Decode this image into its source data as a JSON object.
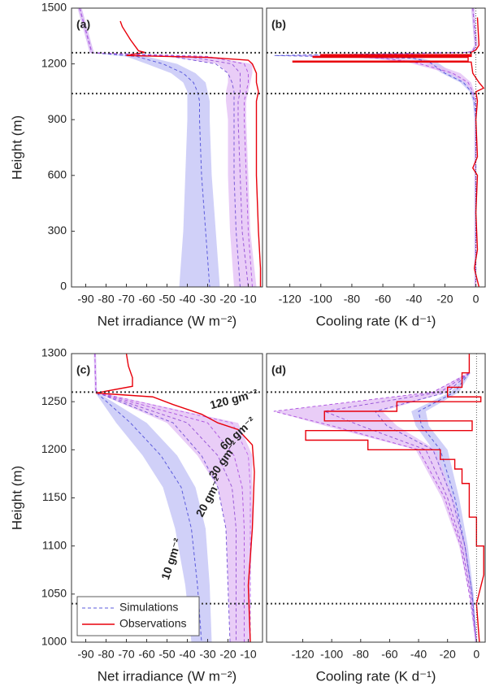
{
  "chart_data": [
    {
      "type": "profile",
      "panel_label": "(a)",
      "x_label": "Net irradiance (W m⁻²)",
      "y_label": "Height (m)",
      "xlim": [
        -97,
        -3
      ],
      "xticks": [
        -90,
        -80,
        -70,
        -60,
        -50,
        -40,
        -30,
        -20,
        -10
      ],
      "ylim": [
        0,
        1500
      ],
      "yticks": [
        0,
        300,
        600,
        900,
        1200,
        1500
      ],
      "hlines": [
        1260,
        1040
      ],
      "bands": [
        {
          "color": "#c4c4f6",
          "heights": [
            1500,
            1260,
            1240,
            1200,
            1150,
            1100,
            1050,
            1000,
            900,
            600,
            300,
            0
          ],
          "low": [
            -94,
            -88,
            -70,
            -60,
            -48,
            -42,
            -40,
            -40,
            -40,
            -41,
            -42,
            -44
          ],
          "high": [
            -92,
            -86,
            -60,
            -45,
            -36,
            -31,
            -30,
            -29,
            -29,
            -28,
            -26,
            -24
          ]
        },
        {
          "color": "#e3c0f5",
          "heights": [
            1500,
            1260,
            1240,
            1200,
            1150,
            1100,
            1050,
            1000,
            900,
            600,
            300,
            0
          ],
          "low": [
            -94,
            -88,
            -50,
            -25,
            -20,
            -20,
            -21,
            -21,
            -20,
            -20,
            -19,
            -17
          ],
          "high": [
            -92,
            -86,
            -30,
            -8,
            -8,
            -9,
            -10,
            -11,
            -11,
            -10,
            -9,
            -6
          ]
        }
      ],
      "series": [
        {
          "color": "#5b5bdc",
          "dash": true,
          "heights": [
            1500,
            1260,
            1240,
            1200,
            1150,
            1100,
            1050,
            1000,
            900,
            600,
            300,
            0
          ],
          "values": [
            -93,
            -87,
            -65,
            -52,
            -42,
            -37,
            -35,
            -34,
            -34,
            -33,
            -31,
            -29
          ]
        },
        {
          "color": "#7a5ad8",
          "dash": true,
          "heights": [
            1500,
            1260,
            1240,
            1200,
            1150,
            1100,
            1050,
            1000,
            900,
            600,
            300,
            0
          ],
          "values": [
            -93,
            -87,
            -48,
            -26,
            -20,
            -18,
            -17,
            -17,
            -17,
            -17,
            -16,
            -14
          ]
        },
        {
          "color": "#9a5ad8",
          "dash": true,
          "heights": [
            1500,
            1260,
            1240,
            1200,
            1150,
            1100,
            1050,
            1000,
            900,
            600,
            300,
            0
          ],
          "values": [
            -93,
            -87,
            -40,
            -18,
            -14,
            -14,
            -14,
            -15,
            -15,
            -14,
            -13,
            -10
          ]
        },
        {
          "color": "#b05ae0",
          "dash": true,
          "heights": [
            1500,
            1260,
            1240,
            1200,
            1150,
            1100,
            1050,
            1000,
            900,
            600,
            300,
            0
          ],
          "values": [
            -93,
            -87,
            -30,
            -12,
            -10,
            -10,
            -11,
            -12,
            -12,
            -11,
            -10,
            -8
          ]
        },
        {
          "color": "#e8000b",
          "dash": false,
          "heights": [
            1430,
            1400,
            1330,
            1270,
            1262,
            1245,
            1235,
            1220,
            1200,
            1150,
            1100,
            1050,
            1000,
            900,
            600,
            300,
            100,
            0
          ],
          "values": [
            -73,
            -72,
            -68,
            -64,
            -61,
            -70,
            -30,
            -10,
            -8,
            -6,
            -6,
            -5,
            -6,
            -6,
            -6,
            -5,
            -4,
            -4
          ]
        }
      ]
    },
    {
      "type": "profile",
      "panel_label": "(b)",
      "x_label": "Cooling rate (K d⁻¹)",
      "xlim": [
        -135,
        6
      ],
      "xticks": [
        -120,
        -100,
        -80,
        -60,
        -40,
        -20,
        0
      ],
      "ylim": [
        0,
        1500
      ],
      "hlines": [
        1260,
        1040
      ],
      "vlines": [
        0
      ],
      "bands": [
        {
          "color": "#c4c4f6",
          "heights": [
            1500,
            1300,
            1270,
            1262,
            1245,
            1230,
            1210,
            1150,
            1100,
            1050,
            1000,
            900,
            0
          ],
          "low": [
            -3,
            -1,
            -3,
            -8,
            -132,
            -45,
            -33,
            -22,
            -10,
            -4,
            -2,
            -1,
            -1
          ],
          "high": [
            -1,
            1,
            -1,
            -3,
            -100,
            -35,
            -25,
            -15,
            -6,
            -2,
            0,
            0,
            0
          ]
        },
        {
          "color": "#e3c0f5",
          "heights": [
            1500,
            1300,
            1270,
            1262,
            1245,
            1230,
            1210,
            1150,
            1100,
            1050,
            1000,
            900,
            0
          ],
          "low": [
            -3,
            -1,
            -3,
            -8,
            -132,
            -70,
            -45,
            -18,
            -7,
            -3,
            -1,
            -1,
            -1
          ],
          "high": [
            -1,
            1,
            -1,
            -3,
            -90,
            -50,
            -30,
            -10,
            -3,
            -1,
            0,
            0,
            0
          ]
        }
      ],
      "series": [
        {
          "color": "#5b5bdc",
          "dash": true,
          "heights": [
            1500,
            1300,
            1270,
            1262,
            1245,
            1230,
            1210,
            1150,
            1100,
            1050,
            1000,
            900,
            0
          ],
          "values": [
            -2,
            0,
            -2,
            -5,
            -130,
            -40,
            -30,
            -20,
            -8,
            -3,
            -1,
            0,
            0
          ]
        },
        {
          "color": "#b05ae0",
          "dash": true,
          "heights": [
            1500,
            1300,
            1270,
            1262,
            1245,
            1230,
            1210,
            1150,
            1100,
            1050,
            1000,
            900,
            0
          ],
          "values": [
            -2,
            0,
            -2,
            -5,
            -100,
            -60,
            -40,
            -15,
            -5,
            -2,
            0,
            0,
            0
          ]
        },
        {
          "color": "#e8000b",
          "dash": false,
          "heights": [
            1450,
            1300,
            1275,
            1262,
            1250,
            1250,
            1245,
            1245,
            1240,
            1240,
            1235,
            1235,
            1215,
            1215,
            1210,
            1210,
            1150,
            1100,
            1070,
            1050,
            1000,
            900,
            700,
            640,
            600,
            400,
            200,
            100,
            0
          ],
          "values": [
            1,
            2,
            0,
            -3,
            -3,
            -100,
            -100,
            -3,
            -3,
            -105,
            -105,
            -5,
            -5,
            -118,
            -118,
            -3,
            -2,
            2,
            5,
            0,
            1,
            0,
            1,
            -2,
            1,
            0,
            1,
            -1,
            2
          ]
        }
      ]
    },
    {
      "type": "profile",
      "panel_label": "(c)",
      "x_label": "Net irradiance (W m⁻²)",
      "y_label": "Height (m)",
      "xlim": [
        -97,
        -3
      ],
      "xticks": [
        -90,
        -80,
        -70,
        -60,
        -50,
        -40,
        -30,
        -20,
        -10
      ],
      "ylim": [
        1000,
        1300
      ],
      "yticks": [
        1000,
        1050,
        1100,
        1150,
        1200,
        1250,
        1300
      ],
      "hlines": [
        1260,
        1040
      ],
      "legend": "lower left",
      "annotations": [
        {
          "text": "10 gm⁻²",
          "color": "#5b5bdc"
        },
        {
          "text": "20 gm⁻²",
          "color": "#7a5ad8"
        },
        {
          "text": "30 gm⁻²",
          "color": "#9a5ad8"
        },
        {
          "text": "60 gm⁻²",
          "color": "#b05ae0"
        },
        {
          "text": "120 gm⁻²",
          "color": "#c070e8"
        }
      ],
      "bands": [
        {
          "color": "#c4c4f6",
          "heights": [
            1300,
            1260,
            1228,
            1194,
            1161,
            1118,
            1059,
            1000
          ],
          "low": [
            -86,
            -85.5,
            -75,
            -62,
            -52,
            -46,
            -41,
            -38
          ],
          "high": [
            -85,
            -84.5,
            -60,
            -45,
            -36,
            -31,
            -29,
            -28
          ]
        },
        {
          "color": "#e3c0f5",
          "heights": [
            1300,
            1260,
            1228,
            1194,
            1161,
            1118,
            1059,
            1000
          ],
          "low": [
            -86,
            -85.5,
            -50,
            -35,
            -25,
            -21,
            -20,
            -19
          ],
          "high": [
            -85,
            -84.5,
            -15,
            -8,
            -8,
            -8,
            -9,
            -9
          ]
        }
      ],
      "series": [
        {
          "name": "Simulations",
          "color": "#5b5bdc",
          "dash": true,
          "heights": [
            1300,
            1260,
            1228,
            1194,
            1161,
            1118,
            1059,
            1000
          ],
          "values": [
            -85.5,
            -85,
            -68,
            -53,
            -43,
            -38,
            -35,
            -33
          ]
        },
        {
          "color": "#7a5ad8",
          "dash": true,
          "heights": [
            1300,
            1260,
            1228,
            1194,
            1161,
            1118,
            1059,
            1000
          ],
          "values": [
            -85.5,
            -85,
            -47,
            -33,
            -25,
            -21,
            -20,
            -19
          ]
        },
        {
          "color": "#9a5ad8",
          "dash": true,
          "heights": [
            1300,
            1260,
            1228,
            1194,
            1161,
            1118,
            1059,
            1000
          ],
          "values": [
            -85.5,
            -85,
            -40,
            -25,
            -18,
            -16,
            -16,
            -16
          ]
        },
        {
          "color": "#b05ae0",
          "dash": true,
          "heights": [
            1300,
            1260,
            1228,
            1194,
            1161,
            1118,
            1059,
            1000
          ],
          "values": [
            -85.5,
            -85,
            -30,
            -17,
            -13,
            -12,
            -12,
            -12
          ]
        },
        {
          "color": "#c070e8",
          "dash": true,
          "heights": [
            1300,
            1260,
            1228,
            1194,
            1161,
            1118,
            1059,
            1000
          ],
          "values": [
            -85.5,
            -85,
            -18,
            -10,
            -9,
            -9,
            -9,
            -9
          ]
        },
        {
          "name": "Observations",
          "color": "#e8000b",
          "dash": false,
          "heights": [
            1300,
            1287,
            1275,
            1266,
            1259,
            1255,
            1247,
            1237,
            1228,
            1221,
            1205,
            1177,
            1118,
            1059,
            1000
          ],
          "values": [
            -70,
            -69,
            -67,
            -67,
            -85,
            -57,
            -47,
            -33,
            -25,
            -15,
            -8,
            -7,
            -8,
            -10,
            -9
          ]
        }
      ]
    },
    {
      "type": "profile",
      "panel_label": "(d)",
      "x_label": "Cooling rate (K d⁻¹)",
      "xlim": [
        -145,
        6
      ],
      "xticks": [
        -120,
        -100,
        -80,
        -60,
        -40,
        -20,
        0
      ],
      "ylim": [
        1000,
        1300
      ],
      "hlines": [
        1260,
        1040
      ],
      "vlines": [
        0
      ],
      "bands": [
        {
          "color": "#c4c4f6",
          "heights": [
            1280,
            1260,
            1240,
            1225,
            1200,
            1150,
            1100,
            1050,
            1000
          ],
          "low": [
            -6,
            -18,
            -45,
            -42,
            -30,
            -18,
            -10,
            -4,
            -1
          ],
          "high": [
            -4,
            -12,
            -35,
            -33,
            -20,
            -12,
            -6,
            -2,
            0
          ]
        },
        {
          "color": "#e3c0f5",
          "heights": [
            1280,
            1260,
            1240,
            1225,
            1200,
            1150,
            1100,
            1050,
            1000
          ],
          "low": [
            -6,
            -30,
            -140,
            -105,
            -42,
            -24,
            -12,
            -5,
            -1
          ],
          "high": [
            -4,
            -20,
            -65,
            -55,
            -28,
            -16,
            -7,
            -3,
            0
          ]
        }
      ],
      "series": [
        {
          "color": "#5b5bdc",
          "dash": true,
          "heights": [
            1280,
            1260,
            1240,
            1225,
            1200,
            1150,
            1100,
            1050,
            1000
          ],
          "values": [
            -5,
            -15,
            -40,
            -38,
            -25,
            -15,
            -8,
            -3,
            0
          ]
        },
        {
          "color": "#7a5ad8",
          "dash": true,
          "heights": [
            1280,
            1260,
            1240,
            1225,
            1200,
            1150,
            1100,
            1050,
            1000
          ],
          "values": [
            -5,
            -20,
            -70,
            -62,
            -30,
            -17,
            -8,
            -3,
            0
          ]
        },
        {
          "color": "#9a5ad8",
          "dash": true,
          "heights": [
            1280,
            1260,
            1240,
            1225,
            1200,
            1150,
            1100,
            1050,
            1000
          ],
          "values": [
            -5,
            -25,
            -105,
            -80,
            -35,
            -20,
            -10,
            -4,
            0
          ]
        },
        {
          "color": "#b05ae0",
          "dash": true,
          "heights": [
            1280,
            1260,
            1240,
            1225,
            1200,
            1150,
            1100,
            1050,
            1000
          ],
          "values": [
            -5,
            -30,
            -140,
            -100,
            -40,
            -22,
            -11,
            -5,
            0
          ]
        },
        {
          "color": "#e8000b",
          "dash": false,
          "heights": [
            1300,
            1280,
            1280,
            1265,
            1265,
            1255,
            1255,
            1250,
            1250,
            1240,
            1240,
            1230,
            1230,
            1220,
            1220,
            1210,
            1210,
            1200,
            1200,
            1190,
            1190,
            1180,
            1180,
            1165,
            1165,
            1130,
            1130,
            1100,
            1100,
            1070,
            1040,
            1000
          ],
          "values": [
            -5,
            -5,
            -10,
            -10,
            -20,
            -20,
            3,
            3,
            -55,
            -55,
            -105,
            -105,
            -3,
            -3,
            -118,
            -118,
            -75,
            -75,
            -25,
            -25,
            -15,
            -15,
            -10,
            -10,
            -5,
            -5,
            0,
            0,
            5,
            5,
            0,
            2
          ]
        }
      ]
    }
  ]
}
